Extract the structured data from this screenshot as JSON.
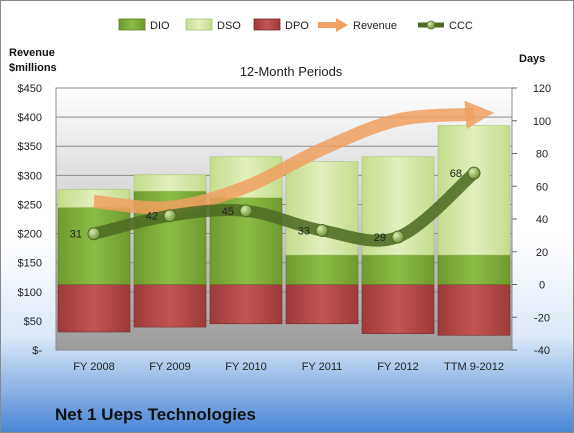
{
  "company": "Net 1 Ueps Technologies",
  "chart_data": {
    "type": "bar",
    "title": "12-Month Periods",
    "left_axis_label": [
      "Revenue",
      "$millions"
    ],
    "right_axis_label": "Days",
    "categories": [
      "FY 2008",
      "FY 2009",
      "FY 2010",
      "FY 2011",
      "FY 2012",
      "TTM 9-2012"
    ],
    "left_ylim": [
      0,
      450
    ],
    "left_ticks": [
      "$-",
      "$50",
      "$100",
      "$150",
      "$200",
      "$250",
      "$300",
      "$350",
      "$400",
      "$450"
    ],
    "right_ylim": [
      -40,
      120
    ],
    "right_ticks": [
      "-40",
      "-20",
      "0",
      "20",
      "40",
      "60",
      "80",
      "100",
      "120"
    ],
    "legend": [
      "DIO",
      "DSO",
      "DPO",
      "Revenue",
      "CCC"
    ],
    "legend_position": "top",
    "grid": true,
    "colors": {
      "DIO": "#7faa3a",
      "DSO": "#d3e7a4",
      "DPO": "#b84a4a",
      "Revenue": "#f0a060",
      "CCC": "#5a7a2a"
    },
    "series": [
      {
        "name": "DIO",
        "axis": "right",
        "stacked": true,
        "values": [
          47,
          57,
          53,
          18,
          18,
          18
        ]
      },
      {
        "name": "DSO",
        "axis": "right",
        "stacked": true,
        "values": [
          11,
          10,
          25,
          57,
          60,
          79
        ]
      },
      {
        "name": "DPO",
        "axis": "right",
        "stacked_negative": true,
        "values": [
          -29,
          -26,
          -24,
          -24,
          -30,
          -31
        ]
      },
      {
        "name": "Revenue",
        "axis": "left",
        "type": "line",
        "values": [
          255,
          245,
          280,
          345,
          395,
          405
        ]
      },
      {
        "name": "CCC",
        "axis": "right",
        "type": "line",
        "values": [
          31,
          42,
          45,
          33,
          29,
          68
        ],
        "labels": [
          "31",
          "42",
          "45",
          "33",
          "29",
          "68"
        ]
      }
    ]
  }
}
